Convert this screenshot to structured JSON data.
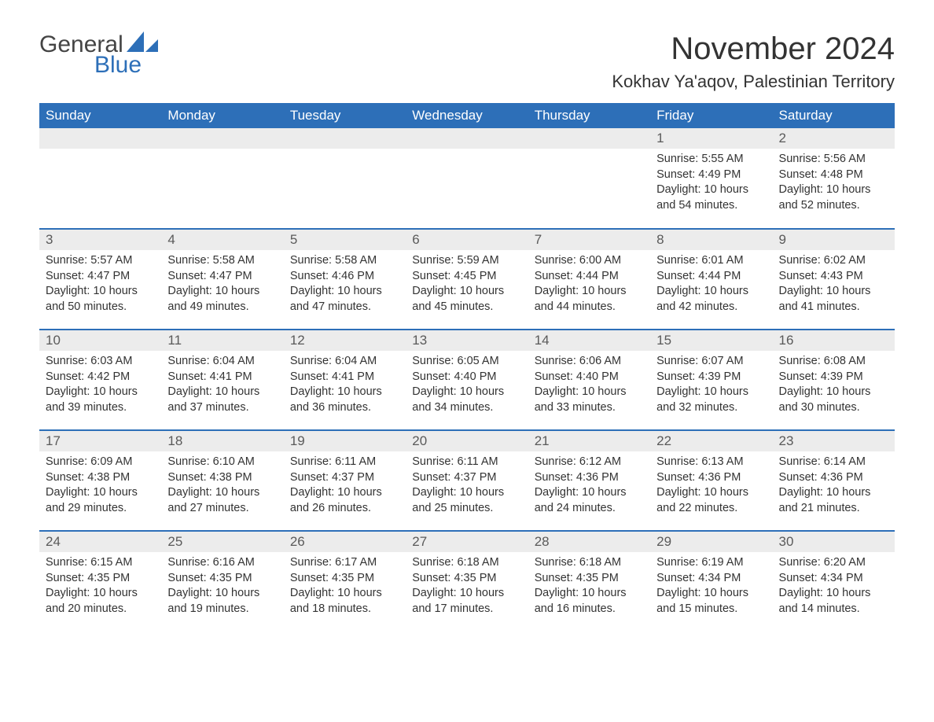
{
  "logo": {
    "word1": "General",
    "word2": "Blue",
    "sail_color": "#2d6fb8"
  },
  "title": "November 2024",
  "location": "Kokhav Ya'aqov, Palestinian Territory",
  "colors": {
    "header_bg": "#2d6fb8",
    "header_fg": "#ffffff",
    "daynum_bg": "#ececec",
    "text": "#333333"
  },
  "weekdays": [
    "Sunday",
    "Monday",
    "Tuesday",
    "Wednesday",
    "Thursday",
    "Friday",
    "Saturday"
  ],
  "weeks": [
    [
      null,
      null,
      null,
      null,
      null,
      {
        "d": "1",
        "sunrise": "5:55 AM",
        "sunset": "4:49 PM",
        "daylight": "10 hours and 54 minutes."
      },
      {
        "d": "2",
        "sunrise": "5:56 AM",
        "sunset": "4:48 PM",
        "daylight": "10 hours and 52 minutes."
      }
    ],
    [
      {
        "d": "3",
        "sunrise": "5:57 AM",
        "sunset": "4:47 PM",
        "daylight": "10 hours and 50 minutes."
      },
      {
        "d": "4",
        "sunrise": "5:58 AM",
        "sunset": "4:47 PM",
        "daylight": "10 hours and 49 minutes."
      },
      {
        "d": "5",
        "sunrise": "5:58 AM",
        "sunset": "4:46 PM",
        "daylight": "10 hours and 47 minutes."
      },
      {
        "d": "6",
        "sunrise": "5:59 AM",
        "sunset": "4:45 PM",
        "daylight": "10 hours and 45 minutes."
      },
      {
        "d": "7",
        "sunrise": "6:00 AM",
        "sunset": "4:44 PM",
        "daylight": "10 hours and 44 minutes."
      },
      {
        "d": "8",
        "sunrise": "6:01 AM",
        "sunset": "4:44 PM",
        "daylight": "10 hours and 42 minutes."
      },
      {
        "d": "9",
        "sunrise": "6:02 AM",
        "sunset": "4:43 PM",
        "daylight": "10 hours and 41 minutes."
      }
    ],
    [
      {
        "d": "10",
        "sunrise": "6:03 AM",
        "sunset": "4:42 PM",
        "daylight": "10 hours and 39 minutes."
      },
      {
        "d": "11",
        "sunrise": "6:04 AM",
        "sunset": "4:41 PM",
        "daylight": "10 hours and 37 minutes."
      },
      {
        "d": "12",
        "sunrise": "6:04 AM",
        "sunset": "4:41 PM",
        "daylight": "10 hours and 36 minutes."
      },
      {
        "d": "13",
        "sunrise": "6:05 AM",
        "sunset": "4:40 PM",
        "daylight": "10 hours and 34 minutes."
      },
      {
        "d": "14",
        "sunrise": "6:06 AM",
        "sunset": "4:40 PM",
        "daylight": "10 hours and 33 minutes."
      },
      {
        "d": "15",
        "sunrise": "6:07 AM",
        "sunset": "4:39 PM",
        "daylight": "10 hours and 32 minutes."
      },
      {
        "d": "16",
        "sunrise": "6:08 AM",
        "sunset": "4:39 PM",
        "daylight": "10 hours and 30 minutes."
      }
    ],
    [
      {
        "d": "17",
        "sunrise": "6:09 AM",
        "sunset": "4:38 PM",
        "daylight": "10 hours and 29 minutes."
      },
      {
        "d": "18",
        "sunrise": "6:10 AM",
        "sunset": "4:38 PM",
        "daylight": "10 hours and 27 minutes."
      },
      {
        "d": "19",
        "sunrise": "6:11 AM",
        "sunset": "4:37 PM",
        "daylight": "10 hours and 26 minutes."
      },
      {
        "d": "20",
        "sunrise": "6:11 AM",
        "sunset": "4:37 PM",
        "daylight": "10 hours and 25 minutes."
      },
      {
        "d": "21",
        "sunrise": "6:12 AM",
        "sunset": "4:36 PM",
        "daylight": "10 hours and 24 minutes."
      },
      {
        "d": "22",
        "sunrise": "6:13 AM",
        "sunset": "4:36 PM",
        "daylight": "10 hours and 22 minutes."
      },
      {
        "d": "23",
        "sunrise": "6:14 AM",
        "sunset": "4:36 PM",
        "daylight": "10 hours and 21 minutes."
      }
    ],
    [
      {
        "d": "24",
        "sunrise": "6:15 AM",
        "sunset": "4:35 PM",
        "daylight": "10 hours and 20 minutes."
      },
      {
        "d": "25",
        "sunrise": "6:16 AM",
        "sunset": "4:35 PM",
        "daylight": "10 hours and 19 minutes."
      },
      {
        "d": "26",
        "sunrise": "6:17 AM",
        "sunset": "4:35 PM",
        "daylight": "10 hours and 18 minutes."
      },
      {
        "d": "27",
        "sunrise": "6:18 AM",
        "sunset": "4:35 PM",
        "daylight": "10 hours and 17 minutes."
      },
      {
        "d": "28",
        "sunrise": "6:18 AM",
        "sunset": "4:35 PM",
        "daylight": "10 hours and 16 minutes."
      },
      {
        "d": "29",
        "sunrise": "6:19 AM",
        "sunset": "4:34 PM",
        "daylight": "10 hours and 15 minutes."
      },
      {
        "d": "30",
        "sunrise": "6:20 AM",
        "sunset": "4:34 PM",
        "daylight": "10 hours and 14 minutes."
      }
    ]
  ],
  "labels": {
    "sunrise": "Sunrise:",
    "sunset": "Sunset:",
    "daylight": "Daylight:"
  }
}
